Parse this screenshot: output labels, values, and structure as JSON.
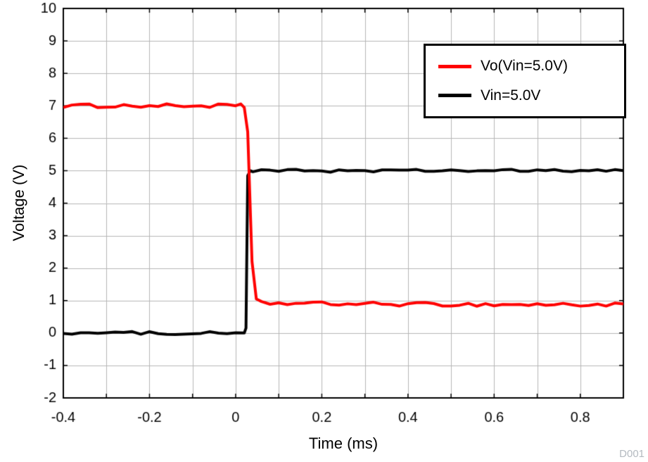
{
  "chart_data": {
    "type": "line",
    "title": "",
    "xlabel": "Time (ms)",
    "ylabel": "Voltage (V)",
    "xlim": [
      -0.4,
      0.9
    ],
    "ylim": [
      -2,
      10
    ],
    "x_minor_step": 0.1,
    "x_ticks": [
      {
        "value": -0.4,
        "label": "-0.4"
      },
      {
        "value": -0.2,
        "label": "-0.2"
      },
      {
        "value": 0,
        "label": "0"
      },
      {
        "value": 0.2,
        "label": "0.2"
      },
      {
        "value": 0.4,
        "label": "0.4"
      },
      {
        "value": 0.6,
        "label": "0.6"
      },
      {
        "value": 0.8,
        "label": "0.8"
      }
    ],
    "y_ticks": [
      {
        "value": -2,
        "label": "-2"
      },
      {
        "value": -1,
        "label": "-1"
      },
      {
        "value": 0,
        "label": "0"
      },
      {
        "value": 1,
        "label": "1"
      },
      {
        "value": 2,
        "label": "2"
      },
      {
        "value": 3,
        "label": "3"
      },
      {
        "value": 4,
        "label": "4"
      },
      {
        "value": 5,
        "label": "5"
      },
      {
        "value": 6,
        "label": "6"
      },
      {
        "value": 7,
        "label": "7"
      },
      {
        "value": 8,
        "label": "8"
      },
      {
        "value": 9,
        "label": "9"
      },
      {
        "value": 10,
        "label": "10"
      }
    ],
    "grid": true,
    "grid_color": "#b6b6b6",
    "axis_color": "#000000",
    "legend": {
      "position": "top-right",
      "entries": [
        {
          "label": "Vo(Vin=5.0V)",
          "color": "#ff0000"
        },
        {
          "label": "Vin=5.0V",
          "color": "#000000"
        }
      ]
    },
    "series": [
      {
        "name": "Vo(Vin=5.0V)",
        "color": "#ff0000",
        "line_width": 4,
        "noise_amplitude": 0.06,
        "points": [
          [
            -0.4,
            7.0
          ],
          [
            0.012,
            7.0
          ],
          [
            0.02,
            6.95
          ],
          [
            0.028,
            6.2
          ],
          [
            0.038,
            2.2
          ],
          [
            0.048,
            1.05
          ],
          [
            0.06,
            0.92
          ],
          [
            0.2,
            0.9
          ],
          [
            0.5,
            0.88
          ],
          [
            0.9,
            0.87
          ]
        ]
      },
      {
        "name": "Vin=5.0V",
        "color": "#000000",
        "line_width": 4,
        "noise_amplitude": 0.045,
        "points": [
          [
            -0.4,
            0.0
          ],
          [
            0.02,
            0.0
          ],
          [
            0.024,
            0.15
          ],
          [
            0.028,
            4.85
          ],
          [
            0.034,
            5.0
          ],
          [
            0.9,
            5.0
          ]
        ]
      }
    ],
    "watermark": "D001"
  }
}
